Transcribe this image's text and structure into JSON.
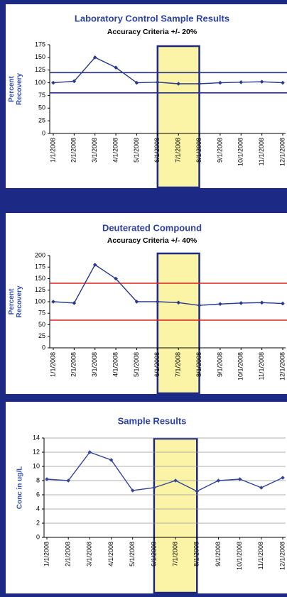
{
  "chart_data": [
    {
      "type": "line",
      "title": "Laboratory Control Sample Results",
      "subtitle": "Accuracy Criteria +/- 20%",
      "y_label": [
        "Percent",
        "Recovery"
      ],
      "categories": [
        "1/1/2008",
        "2/1/2008",
        "3/1/2008",
        "4/1/2008",
        "5/1/2008",
        "6/1/2008",
        "7/1/2008",
        "8/1/2008",
        "9/1/2008",
        "10/1/2008",
        "11/1/2008",
        "12/1/2008"
      ],
      "values": [
        100,
        103,
        150,
        130,
        100,
        101,
        98,
        98,
        100,
        101,
        102,
        100
      ],
      "color": "#28388e",
      "limits": [
        120,
        80
      ],
      "limit_color": "#2a2f8a",
      "ylim": [
        0,
        175
      ],
      "yticks": [
        0,
        25,
        50,
        75,
        100,
        125,
        150,
        175
      ],
      "grid": false
    },
    {
      "type": "line",
      "title": "Deuterated Compound",
      "subtitle": "Accuracy Criteria +/- 40%",
      "y_label": [
        "Percent",
        "Recovery"
      ],
      "categories": [
        "1/1/2008",
        "2/1/2008",
        "3/1/2008",
        "4/1/2008",
        "5/1/2008",
        "6/1/2008",
        "7/1/2008",
        "8/1/2008",
        "9/1/2008",
        "10/1/2008",
        "11/1/2008",
        "12/1/2008"
      ],
      "values": [
        100,
        97,
        180,
        150,
        100,
        100,
        98,
        92,
        95,
        97,
        98,
        96
      ],
      "color": "#28388e",
      "limits": [
        140,
        60
      ],
      "limit_color": "#e0201c",
      "ylim": [
        0,
        200
      ],
      "yticks": [
        0,
        25,
        50,
        75,
        100,
        125,
        150,
        175,
        200
      ],
      "grid": false
    },
    {
      "type": "line",
      "title": "Sample Results",
      "y_label": [
        "Conc in ug/L"
      ],
      "categories": [
        "1/1/2008",
        "2/1/2008",
        "3/1/2008",
        "4/1/2008",
        "5/1/2008",
        "6/1/2008",
        "7/1/2008",
        "8/1/2008",
        "9/1/2008",
        "10/1/2008",
        "11/1/2008",
        "12/1/2008"
      ],
      "values": [
        8.2,
        8,
        12,
        10.9,
        6.6,
        7,
        8,
        6.5,
        8,
        8.2,
        7,
        8.4
      ],
      "color": "#34449c",
      "ylim": [
        0,
        14
      ],
      "yticks": [
        0,
        2,
        4,
        6,
        8,
        10,
        12,
        14
      ],
      "grid": true
    }
  ]
}
